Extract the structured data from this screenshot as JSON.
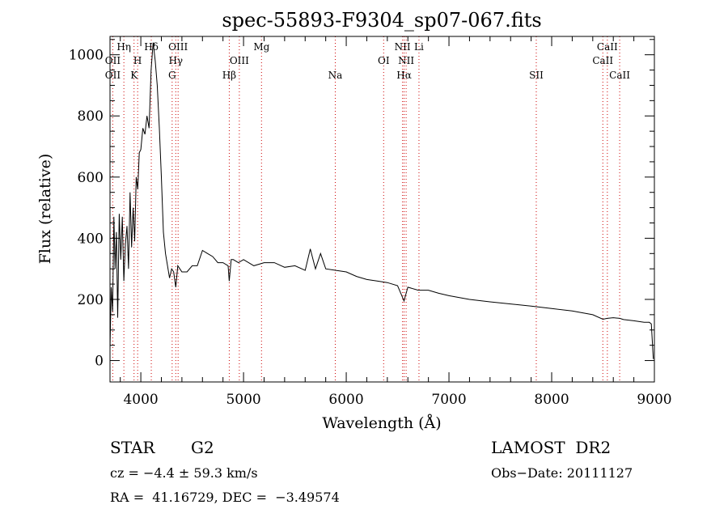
{
  "chart_data": {
    "type": "line",
    "title": "spec-55893-F9304_sp07-067.fits",
    "xlabel": "Wavelength (Å)",
    "ylabel": "Flux (relative)",
    "xlim": [
      3700,
      9000
    ],
    "ylim": [
      -70,
      1060
    ],
    "x_ticks": [
      4000,
      5000,
      6000,
      7000,
      8000,
      9000
    ],
    "y_ticks": [
      0,
      200,
      400,
      600,
      800,
      1000
    ],
    "series": [
      {
        "x": [
          3700,
          3712,
          3725,
          3738,
          3750,
          3762,
          3775,
          3790,
          3805,
          3820,
          3835,
          3850,
          3865,
          3880,
          3895,
          3910,
          3925,
          3940,
          3955,
          3970,
          3985,
          4000,
          4020,
          4040,
          4060,
          4080,
          4100,
          4120,
          4140,
          4160,
          4180,
          4200,
          4220,
          4240,
          4260,
          4280,
          4300,
          4320,
          4340,
          4360,
          4380,
          4400,
          4450,
          4500,
          4550,
          4600,
          4650,
          4700,
          4750,
          4800,
          4850,
          4861,
          4880,
          4900,
          4950,
          5000,
          5100,
          5200,
          5300,
          5400,
          5500,
          5600,
          5650,
          5700,
          5750,
          5800,
          5900,
          6000,
          6100,
          6200,
          6300,
          6400,
          6500,
          6563,
          6600,
          6700,
          6800,
          6900,
          7000,
          7200,
          7400,
          7600,
          7800,
          8000,
          8200,
          8400,
          8498,
          8542,
          8600,
          8662,
          8700,
          8800,
          8900,
          8950,
          8970,
          8980,
          8985,
          8990
        ],
        "y": [
          40,
          240,
          160,
          470,
          300,
          420,
          140,
          480,
          330,
          470,
          260,
          380,
          440,
          300,
          550,
          370,
          500,
          390,
          600,
          560,
          680,
          690,
          760,
          740,
          800,
          760,
          950,
          1040,
          980,
          900,
          760,
          600,
          420,
          350,
          310,
          270,
          300,
          290,
          240,
          310,
          300,
          290,
          290,
          310,
          310,
          360,
          350,
          340,
          320,
          320,
          310,
          260,
          330,
          330,
          320,
          330,
          310,
          320,
          320,
          305,
          310,
          295,
          365,
          300,
          350,
          300,
          295,
          290,
          275,
          265,
          260,
          255,
          245,
          195,
          240,
          230,
          230,
          220,
          212,
          200,
          192,
          185,
          178,
          170,
          162,
          150,
          135,
          138,
          140,
          138,
          134,
          130,
          125,
          125,
          120,
          60,
          30,
          5
        ]
      }
    ],
    "annotations": [
      {
        "text": "OII",
        "x": 3727,
        "row": 3
      },
      {
        "text": "OII",
        "x": 3727,
        "row": 2
      },
      {
        "text": "Hη",
        "x": 3835,
        "row": 1
      },
      {
        "text": "H",
        "x": 3969,
        "row": 2
      },
      {
        "text": "K",
        "x": 3934,
        "row": 3
      },
      {
        "text": "Hδ",
        "x": 4102,
        "row": 1
      },
      {
        "text": "OIII",
        "x": 4363,
        "row": 1
      },
      {
        "text": "Hγ",
        "x": 4340,
        "row": 2
      },
      {
        "text": "G",
        "x": 4305,
        "row": 3
      },
      {
        "text": "OIII",
        "x": 4959,
        "row": 2
      },
      {
        "text": "Hβ",
        "x": 4861,
        "row": 3
      },
      {
        "text": "Mg",
        "x": 5175,
        "row": 1
      },
      {
        "text": "Na",
        "x": 5893,
        "row": 3
      },
      {
        "text": "OI",
        "x": 6364,
        "row": 2
      },
      {
        "text": "NII",
        "x": 6548,
        "row": 1
      },
      {
        "text": "Li",
        "x": 6708,
        "row": 1
      },
      {
        "text": "NII",
        "x": 6583,
        "row": 2
      },
      {
        "text": "Hα",
        "x": 6563,
        "row": 3
      },
      {
        "text": "SII",
        "x": 6731,
        "row": 3,
        "xpos": 7850
      },
      {
        "text": "CaII",
        "x": 8542,
        "row": 1
      },
      {
        "text": "CaII",
        "x": 8498,
        "row": 2
      },
      {
        "text": "CaII",
        "x": 8662,
        "row": 3
      }
    ],
    "line_markers": [
      3727,
      3835,
      3934,
      3969,
      4102,
      4305,
      4340,
      4363,
      4861,
      4959,
      5175,
      5893,
      6364,
      6548,
      6563,
      6583,
      6708,
      7850,
      8498,
      8542,
      8662
    ],
    "grid": false,
    "marker_color": "#cc0000"
  },
  "info": {
    "object_class": "STAR",
    "subclass": "G2",
    "survey": "LAMOST  DR2",
    "redshift": "cz = −4.4 ± 59.3 km/s",
    "obs_date": "Obs−Date: 20111127",
    "coords": "RA =  41.16729, DEC =  −3.49574"
  }
}
